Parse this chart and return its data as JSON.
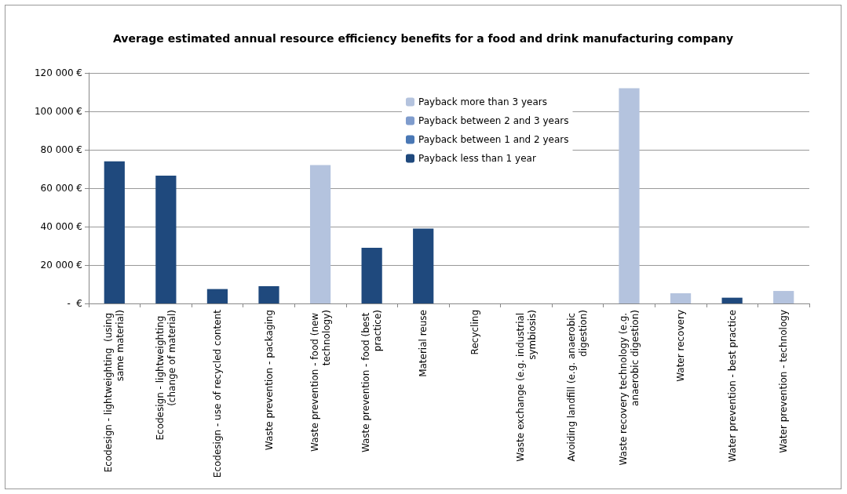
{
  "chart_data": {
    "type": "bar",
    "title": "Average estimated annual resource efficiency benefits for a food and drink manufacturing company",
    "categories": [
      "Ecodesign - lightweighting  (using same material)",
      "Ecodesign - lightweighting  (change of material)",
      "Ecodesign - use of recycled content",
      "Waste prevention - packaging",
      "Waste prevention - food (new technology)",
      "Waste prevention - food (best practice)",
      "Material reuse",
      "Recycling",
      "Waste exchange (e.g. industrial symbiosis)",
      "Avoiding landfill (e.g. anaerobic digestion)",
      "Waste recovery technology (e.g. anaerobic digestion)",
      "Water recovery",
      "Water prevention - best practice",
      "Water prevention - technology"
    ],
    "series": [
      {
        "name": "Payback less than 1 year",
        "color": "#1f497d",
        "values": [
          74000,
          66500,
          7500,
          9000,
          null,
          29000,
          39000,
          null,
          null,
          null,
          null,
          null,
          3000,
          null
        ]
      },
      {
        "name": "Payback between 1 and 2 years",
        "color": "#4a78b5",
        "values": [
          null,
          null,
          null,
          null,
          null,
          null,
          null,
          null,
          null,
          null,
          null,
          null,
          null,
          null
        ]
      },
      {
        "name": "Payback between 2 and 3 years",
        "color": "#7f9ccd",
        "values": [
          null,
          null,
          null,
          null,
          null,
          null,
          null,
          null,
          null,
          null,
          null,
          null,
          null,
          null
        ]
      },
      {
        "name": "Payback more than 3 years",
        "color": "#b4c3de",
        "values": [
          null,
          null,
          null,
          null,
          72000,
          null,
          null,
          null,
          null,
          null,
          112000,
          5300,
          null,
          6500
        ]
      }
    ],
    "stacked": true,
    "ylim": [
      0,
      120000
    ],
    "yticks": [
      {
        "value": 0,
        "label": "-  €"
      },
      {
        "value": 20000,
        "label": "20 000 €"
      },
      {
        "value": 40000,
        "label": "40 000 €"
      },
      {
        "value": 60000,
        "label": "60 000 €"
      },
      {
        "value": 80000,
        "label": "80 000 €"
      },
      {
        "value": 100000,
        "label": "100 000 €"
      },
      {
        "value": 120000,
        "label": "120 000 €"
      }
    ],
    "grid": "y",
    "legend": "top"
  }
}
